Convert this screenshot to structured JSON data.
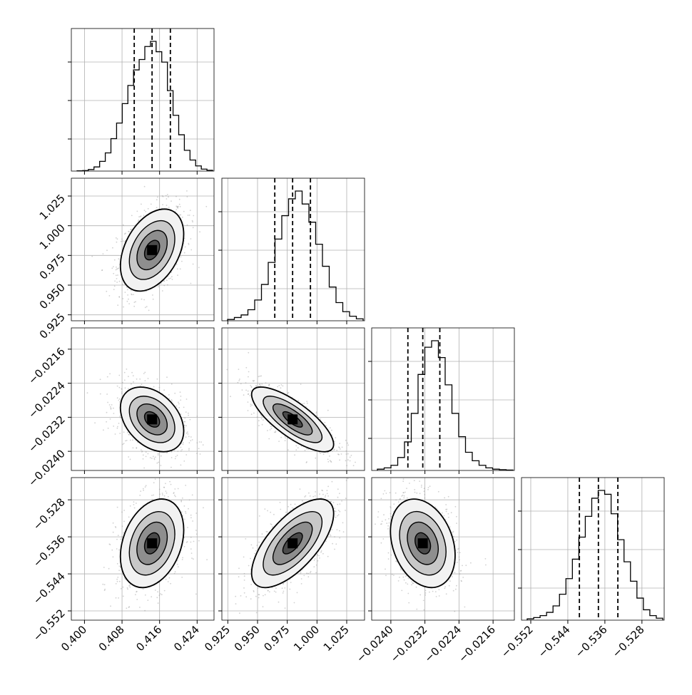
{
  "chart_data": {
    "type": "corner",
    "title": "",
    "grid": true,
    "parameters": [
      {
        "ticks": [
          0.4,
          0.408,
          0.416,
          0.424
        ],
        "tick_labels": [
          "0.400",
          "0.408",
          "0.416",
          "0.424"
        ],
        "range": [
          0.3972,
          0.4276
        ],
        "quantiles": [
          0.4106,
          0.4144,
          0.4183
        ],
        "hist_peak": 0.415
      },
      {
        "ticks": [
          0.925,
          0.95,
          0.975,
          1.0,
          1.025
        ],
        "tick_labels": [
          "0.925",
          "0.950",
          "0.975",
          "1.000",
          "1.025"
        ],
        "range": [
          0.92,
          1.04
        ],
        "quantiles": [
          0.9645,
          0.9795,
          0.9945
        ],
        "hist_peak": 0.98
      },
      {
        "ticks": [
          -0.024,
          -0.0232,
          -0.0224,
          -0.0216
        ],
        "tick_labels": [
          "−0.0240",
          "−0.0232",
          "−0.0224",
          "−0.0216"
        ],
        "range": [
          -0.02445,
          -0.0211
        ],
        "quantiles": [
          -0.0236,
          -0.02325,
          -0.02285
        ],
        "hist_peak": -0.02325
      },
      {
        "ticks": [
          -0.552,
          -0.544,
          -0.536,
          -0.528
        ],
        "tick_labels": [
          "−0.552",
          "−0.544",
          "−0.536",
          "−0.528"
        ],
        "range": [
          -0.554,
          -0.5232
        ],
        "quantiles": [
          -0.5415,
          -0.5374,
          -0.5332
        ],
        "hist_peak": -0.537
      }
    ],
    "histograms": [
      [
        0.002,
        0.004,
        0.012,
        0.032,
        0.075,
        0.14,
        0.25,
        0.37,
        0.52,
        0.66,
        0.78,
        0.86,
        0.96,
        1.0,
        0.92,
        0.84,
        0.62,
        0.43,
        0.28,
        0.16,
        0.085,
        0.04,
        0.015,
        0.006
      ],
      [
        0.01,
        0.025,
        0.045,
        0.085,
        0.16,
        0.28,
        0.45,
        0.63,
        0.81,
        0.94,
        1.0,
        0.9,
        0.76,
        0.59,
        0.42,
        0.26,
        0.14,
        0.07,
        0.035,
        0.015
      ],
      [
        0.01,
        0.02,
        0.04,
        0.1,
        0.22,
        0.44,
        0.74,
        0.95,
        1.0,
        0.87,
        0.66,
        0.44,
        0.26,
        0.14,
        0.075,
        0.04,
        0.02,
        0.01,
        0.006,
        0.003
      ],
      [
        0.01,
        0.02,
        0.035,
        0.06,
        0.11,
        0.2,
        0.32,
        0.47,
        0.64,
        0.8,
        0.94,
        1.0,
        0.97,
        0.82,
        0.62,
        0.45,
        0.3,
        0.17,
        0.08,
        0.035,
        0.015
      ]
    ],
    "covariance": [
      [
        8.6e-06,
        1.7e-05,
        -3.5e-07,
        3.68e-06
      ],
      [
        1.7e-05,
        0.000225,
        -3.82e-06,
        4.17e-05
      ],
      [
        -3.5e-07,
        -3.82e-06,
        1.09e-07,
        -3.74e-07
      ],
      [
        3.68e-06,
        4.17e-05,
        -3.74e-07,
        1.73e-05
      ]
    ]
  }
}
